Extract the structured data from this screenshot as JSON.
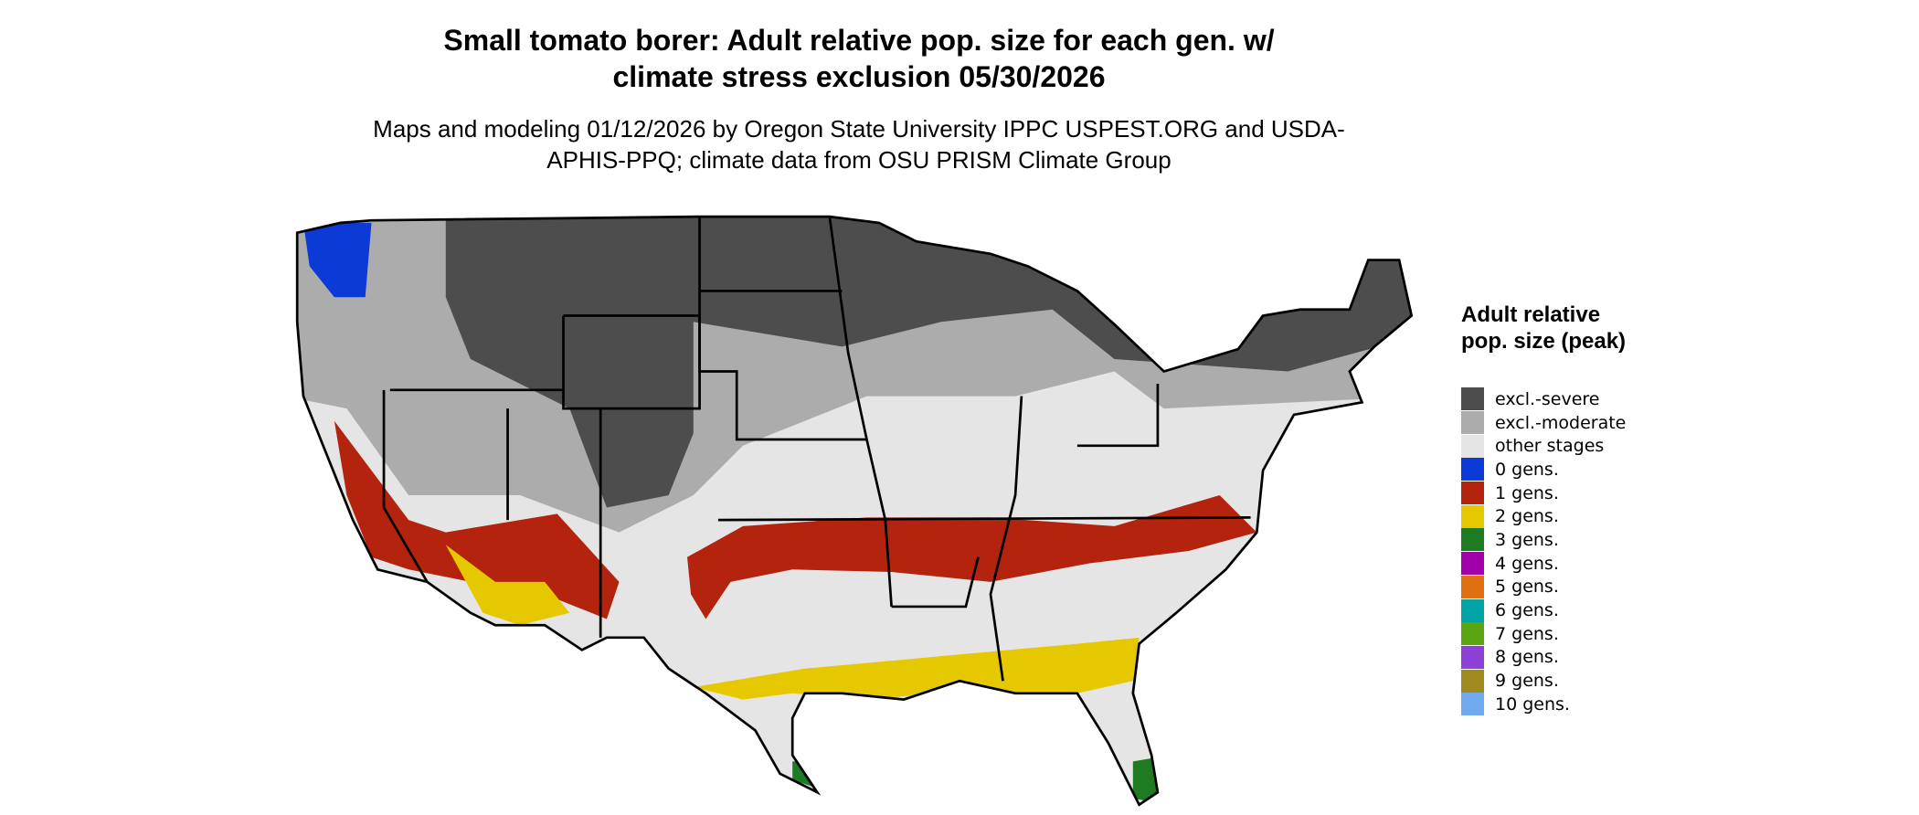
{
  "header": {
    "title": "Small tomato borer: Adult relative pop. size for each gen. w/ climate stress exclusion 05/30/2026",
    "subtitle": "Maps and modeling 01/12/2026 by Oregon State University IPPC USPEST.ORG and USDA-APHIS-PPQ; climate data from OSU PRISM Climate Group"
  },
  "legend": {
    "title": "Adult relative pop. size (peak)",
    "items": [
      {
        "label": "excl.-severe",
        "color": "#4d4d4d"
      },
      {
        "label": "excl.-moderate",
        "color": "#acacac"
      },
      {
        "label": "other stages",
        "color": "#e5e5e5"
      },
      {
        "label": "0 gens.",
        "color": "#0b3ad6"
      },
      {
        "label": "1 gens.",
        "color": "#b3230e"
      },
      {
        "label": "2 gens.",
        "color": "#e6c800"
      },
      {
        "label": "3 gens.",
        "color": "#1f7b22"
      },
      {
        "label": "4 gens.",
        "color": "#a100a8"
      },
      {
        "label": "5 gens.",
        "color": "#df6f10"
      },
      {
        "label": "6 gens.",
        "color": "#00a4a6"
      },
      {
        "label": "7 gens.",
        "color": "#5ba512"
      },
      {
        "label": "8 gens.",
        "color": "#8c40d6"
      },
      {
        "label": "9 gens.",
        "color": "#a08a1f"
      },
      {
        "label": "10 gens.",
        "color": "#70a9ed"
      }
    ]
  }
}
